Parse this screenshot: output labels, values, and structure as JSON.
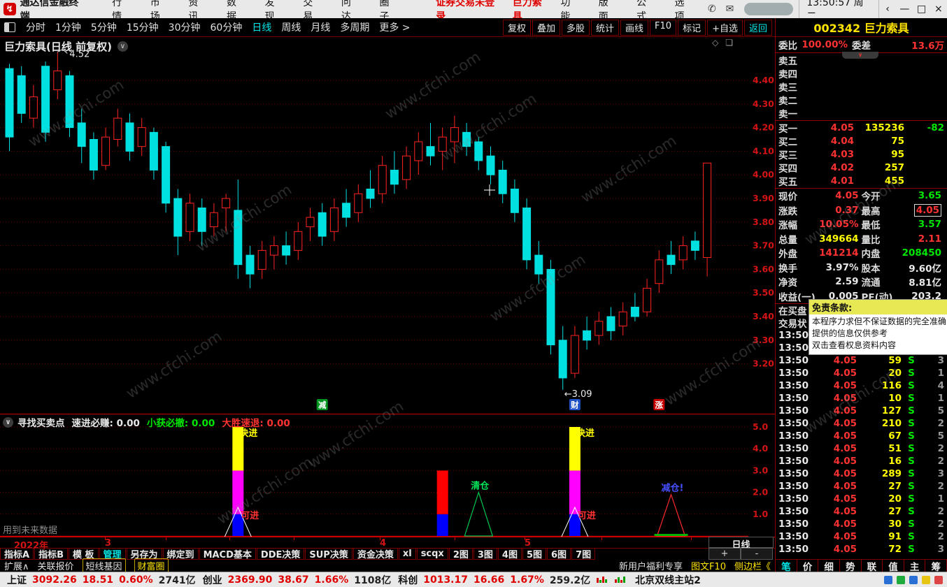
{
  "titlebar": {
    "app_title": "通达信金融终端",
    "menus": [
      "行情",
      "市场",
      "资讯",
      "数据",
      "发现",
      "交易",
      "问达",
      "圈子"
    ],
    "login_warning": "证券交易未登录",
    "warning_stock": "巨力索具",
    "right_menus": [
      "功能",
      "版面",
      "公式",
      "选项"
    ],
    "clock": "13:50:57 周二"
  },
  "toolbar": {
    "periods": [
      "分时",
      "1分钟",
      "5分钟",
      "15分钟",
      "30分钟",
      "60分钟",
      "日线",
      "周线",
      "月线",
      "多周期",
      "更多 >"
    ],
    "active_period": "日线",
    "actions": [
      "复权",
      "叠加",
      "多股",
      "统计",
      "画线",
      "F10",
      "标记",
      "+自选"
    ],
    "back_label": "返回"
  },
  "chart": {
    "title": "巨力索具(日线 前复权)",
    "watermark": "www.cfchi.com"
  },
  "chart_data": [
    {
      "type": "candlestick",
      "title": "巨力索具(日线 前复权)",
      "ylim": [
        3.05,
        4.55
      ],
      "y_ticks": [
        "4.40",
        "4.30",
        "4.20",
        "4.10",
        "4.00",
        "3.90",
        "3.80",
        "3.70",
        "3.60",
        "3.50",
        "3.40",
        "3.30",
        "3.20"
      ],
      "x_axis_labels": [
        {
          "text": "2022年",
          "x": 20
        },
        {
          "text": "3",
          "x": 150
        },
        {
          "text": "4",
          "x": 543
        },
        {
          "text": "5",
          "x": 750
        }
      ],
      "up_color": "#ff2222",
      "down_color": "#00e0e0",
      "annotations": [
        {
          "text": "4.52",
          "index": 4,
          "pos": "high"
        },
        {
          "text": "←3.09",
          "index": 46,
          "pos": "low"
        }
      ],
      "event_badges": [
        {
          "text": "减",
          "color": "#00941e",
          "index": 26
        },
        {
          "text": "财",
          "color": "#1e50c8",
          "index": 47
        },
        {
          "text": "涨",
          "color": "#c80000",
          "index": 54
        }
      ],
      "candles": [
        [
          4.45,
          4.47,
          4.1,
          4.16
        ],
        [
          4.42,
          4.46,
          4.22,
          4.26
        ],
        [
          4.24,
          4.38,
          4.2,
          4.33
        ],
        [
          4.46,
          4.48,
          4.14,
          4.18
        ],
        [
          4.36,
          4.52,
          4.32,
          4.44
        ],
        [
          4.42,
          4.44,
          4.16,
          4.2
        ],
        [
          4.22,
          4.28,
          4.05,
          4.12
        ],
        [
          4.15,
          4.18,
          3.98,
          4.02
        ],
        [
          4.04,
          4.2,
          4.02,
          4.16
        ],
        [
          4.15,
          4.28,
          4.12,
          4.24
        ],
        [
          4.22,
          4.26,
          4.06,
          4.1
        ],
        [
          4.12,
          4.24,
          4.08,
          4.2
        ],
        [
          4.18,
          4.2,
          3.98,
          4.02
        ],
        [
          4.12,
          4.14,
          3.84,
          3.88
        ],
        [
          3.9,
          3.94,
          3.66,
          3.74
        ],
        [
          3.76,
          3.92,
          3.72,
          3.88
        ],
        [
          3.86,
          3.9,
          3.7,
          3.76
        ],
        [
          3.78,
          3.88,
          3.74,
          3.84
        ],
        [
          3.86,
          3.92,
          3.76,
          3.9
        ],
        [
          3.85,
          3.98,
          3.56,
          3.62
        ],
        [
          3.66,
          3.7,
          3.52,
          3.58
        ],
        [
          3.6,
          3.72,
          3.56,
          3.68
        ],
        [
          3.66,
          3.74,
          3.6,
          3.7
        ],
        [
          3.7,
          3.76,
          3.62,
          3.66
        ],
        [
          3.68,
          3.8,
          3.64,
          3.76
        ],
        [
          3.78,
          3.86,
          3.72,
          3.82
        ],
        [
          3.84,
          3.88,
          3.7,
          3.74
        ],
        [
          3.76,
          3.9,
          3.72,
          3.86
        ],
        [
          3.88,
          3.94,
          3.78,
          3.82
        ],
        [
          3.84,
          3.96,
          3.8,
          3.92
        ],
        [
          3.94,
          4.02,
          3.86,
          3.9
        ],
        [
          3.92,
          4.08,
          3.88,
          4.04
        ],
        [
          4.02,
          4.1,
          3.92,
          3.96
        ],
        [
          3.98,
          4.12,
          3.94,
          4.08
        ],
        [
          4.06,
          4.18,
          4.0,
          4.14
        ],
        [
          4.12,
          4.22,
          4.04,
          4.08
        ],
        [
          4.1,
          4.2,
          4.02,
          4.16
        ],
        [
          4.14,
          4.25,
          4.05,
          4.2
        ],
        [
          4.18,
          4.22,
          4.08,
          4.12
        ],
        [
          4.14,
          4.16,
          4.02,
          4.06
        ],
        [
          4.08,
          4.12,
          3.96,
          4.0
        ],
        [
          4.02,
          4.06,
          3.88,
          3.92
        ],
        [
          3.94,
          3.98,
          3.8,
          3.84
        ],
        [
          3.86,
          3.9,
          3.6,
          3.64
        ],
        [
          3.66,
          3.72,
          3.54,
          3.58
        ],
        [
          3.6,
          3.64,
          3.24,
          3.28
        ],
        [
          3.3,
          3.36,
          3.09,
          3.14
        ],
        [
          3.16,
          3.36,
          3.14,
          3.32
        ],
        [
          3.34,
          3.4,
          3.26,
          3.3
        ],
        [
          3.32,
          3.42,
          3.28,
          3.38
        ],
        [
          3.4,
          3.44,
          3.3,
          3.34
        ],
        [
          3.36,
          3.46,
          3.32,
          3.42
        ],
        [
          3.44,
          3.5,
          3.38,
          3.4
        ],
        [
          3.42,
          3.56,
          3.4,
          3.52
        ],
        [
          3.54,
          3.68,
          3.5,
          3.64
        ],
        [
          3.66,
          3.72,
          3.58,
          3.62
        ],
        [
          3.64,
          3.74,
          3.6,
          3.7
        ],
        [
          3.72,
          3.76,
          3.64,
          3.68
        ],
        [
          3.65,
          4.05,
          3.57,
          4.05
        ]
      ]
    },
    {
      "type": "bar",
      "name": "寻找买卖点",
      "stats": [
        {
          "label": "速进必赚:",
          "value": "0.00",
          "color": "#e8e8e8"
        },
        {
          "label": "小获必撤:",
          "value": "0.00",
          "color": "#00e600"
        },
        {
          "label": "大胜速退:",
          "value": "0.00",
          "color": "#ff3232"
        }
      ],
      "note": "用到未来数据",
      "ylim": [
        0,
        5.6
      ],
      "y_ticks": [
        "5.0",
        "4.0",
        "3.0",
        "2.0",
        "1.0"
      ],
      "bars": [
        {
          "index": 19,
          "segments": [
            {
              "color": "#0000ff",
              "value": 1
            },
            {
              "color": "#ff00ff",
              "value": 2
            },
            {
              "color": "#ffff00",
              "value": 2
            }
          ],
          "top_label": {
            "text": "快进",
            "color": "#ffff00"
          },
          "mid_label": {
            "text": "可进",
            "color": "#ff3232"
          },
          "white_triangle": true
        },
        {
          "index": 36,
          "segments": [
            {
              "color": "#0000ff",
              "value": 1
            },
            {
              "color": "#ff0000",
              "value": 2
            }
          ]
        },
        {
          "index": 47,
          "segments": [
            {
              "color": "#0000ff",
              "value": 1
            },
            {
              "color": "#ff00ff",
              "value": 2
            },
            {
              "color": "#ffff00",
              "value": 2
            }
          ],
          "top_label": {
            "text": "快进",
            "color": "#ffff00"
          },
          "mid_label": {
            "text": "可进",
            "color": "#ff3232"
          },
          "white_triangle": true
        }
      ],
      "triangles": [
        {
          "index": 39,
          "height": 2.0,
          "color": "#00c850",
          "label": "清仓",
          "label_color": "#00e65a",
          "green_base": false
        },
        {
          "index": 55,
          "height": 1.9,
          "color": "#ff2828",
          "label": "减仓!",
          "label_color": "#4650ff",
          "green_base": true
        }
      ]
    }
  ],
  "right_panel": {
    "stock_code_name": "002342 巨力索具",
    "weibi_label": "委比",
    "weibi_value": "100.00%",
    "weicha_label": "委差",
    "weicha_value": "13.6万",
    "sell_rows": [
      "卖五",
      "卖四",
      "卖三",
      "卖二",
      "卖一"
    ],
    "buy_rows": [
      {
        "label": "买一",
        "price": "4.05",
        "vol": "135236",
        "extra": "-82"
      },
      {
        "label": "买二",
        "price": "4.04",
        "vol": "75",
        "extra": ""
      },
      {
        "label": "买三",
        "price": "4.03",
        "vol": "95",
        "extra": ""
      },
      {
        "label": "买四",
        "price": "4.02",
        "vol": "257",
        "extra": ""
      },
      {
        "label": "买五",
        "price": "4.01",
        "vol": "455",
        "extra": ""
      }
    ],
    "info_rows": [
      [
        {
          "label": "现价",
          "value": "4.05",
          "color": "red"
        },
        {
          "label": "今开",
          "value": "3.65",
          "color": "green"
        }
      ],
      [
        {
          "label": "涨跌",
          "value": "0.37",
          "color": "red"
        },
        {
          "label": "最高",
          "value": "4.05",
          "color": "red",
          "boxed": true
        }
      ],
      [
        {
          "label": "涨幅",
          "value": "10.05%",
          "color": "red"
        },
        {
          "label": "最低",
          "value": "3.57",
          "color": "green"
        }
      ],
      [
        {
          "label": "总量",
          "value": "349664",
          "color": "yellow"
        },
        {
          "label": "量比",
          "value": "2.11",
          "color": "red"
        }
      ],
      [
        {
          "label": "外盘",
          "value": "141214",
          "color": "red"
        },
        {
          "label": "内盘",
          "value": "208450",
          "color": "green"
        }
      ],
      [
        {
          "label": "换手",
          "value": "3.97%",
          "color": "white"
        },
        {
          "label": "股本",
          "value": "9.60亿",
          "color": "white"
        }
      ],
      [
        {
          "label": "净资",
          "value": "2.59",
          "color": "white"
        },
        {
          "label": "流通",
          "value": "8.81亿",
          "color": "white"
        }
      ],
      [
        {
          "label": "收益(一)",
          "value": "0.005",
          "color": "white"
        },
        {
          "label": "PE(动)",
          "value": "203.2",
          "color": "white"
        }
      ]
    ],
    "partial_rows": [
      "在买盘",
      "交易状"
    ],
    "tooltip": {
      "title": "免责条款:",
      "lines": [
        "本程序力求但不保证数据的完全准确,",
        "提供的信息仅供参考",
        "双击查看权息资料内容"
      ]
    },
    "tape_partial": [
      "13:50",
      "13:50"
    ],
    "tape": [
      {
        "time": "13:50",
        "price": "4.05",
        "vol": "59",
        "dir": "S",
        "n": "3"
      },
      {
        "time": "13:50",
        "price": "4.05",
        "vol": "20",
        "dir": "S",
        "n": "1"
      },
      {
        "time": "13:50",
        "price": "4.05",
        "vol": "116",
        "dir": "S",
        "n": "4"
      },
      {
        "time": "13:50",
        "price": "4.05",
        "vol": "10",
        "dir": "S",
        "n": "1"
      },
      {
        "time": "13:50",
        "price": "4.05",
        "vol": "127",
        "dir": "S",
        "n": "5"
      },
      {
        "time": "13:50",
        "price": "4.05",
        "vol": "210",
        "dir": "S",
        "n": "2"
      },
      {
        "time": "13:50",
        "price": "4.05",
        "vol": "67",
        "dir": "S",
        "n": "5"
      },
      {
        "time": "13:50",
        "price": "4.05",
        "vol": "51",
        "dir": "S",
        "n": "2"
      },
      {
        "time": "13:50",
        "price": "4.05",
        "vol": "16",
        "dir": "S",
        "n": "2"
      },
      {
        "time": "13:50",
        "price": "4.05",
        "vol": "289",
        "dir": "S",
        "n": "3"
      },
      {
        "time": "13:50",
        "price": "4.05",
        "vol": "27",
        "dir": "S",
        "n": "2"
      },
      {
        "time": "13:50",
        "price": "4.05",
        "vol": "20",
        "dir": "S",
        "n": "1"
      },
      {
        "time": "13:50",
        "price": "4.05",
        "vol": "27",
        "dir": "S",
        "n": "2"
      },
      {
        "time": "13:50",
        "price": "4.05",
        "vol": "30",
        "dir": "S",
        "n": "2"
      },
      {
        "time": "13:50",
        "price": "4.05",
        "vol": "91",
        "dir": "S",
        "n": "2"
      },
      {
        "time": "13:50",
        "price": "4.05",
        "vol": "72",
        "dir": "S",
        "n": "3"
      }
    ],
    "tape_tabs": [
      "笔",
      "价",
      "细",
      "势",
      "联",
      "值",
      "主",
      "筹"
    ],
    "active_tape_tab": "笔"
  },
  "bottom": {
    "tabs": [
      "指标A",
      "指标B",
      "模 板",
      "管理",
      "另存为",
      "绑定到",
      "MACD基本",
      "DDE决策",
      "SUP决策",
      "资金决策",
      "xl",
      "scqx",
      "2图",
      "3图",
      "4图",
      "5图",
      "6图",
      "7图"
    ],
    "active_tab": "管理",
    "period_label": "日线",
    "zoom_in": "+",
    "zoom_out": "-",
    "row2_left": [
      "扩展∧",
      "关联报价",
      "短线基因",
      "财富圈"
    ],
    "row2_right": [
      {
        "text": "新用户福利专享",
        "color": "white"
      },
      {
        "text": "图文F10",
        "color": "yellow"
      },
      {
        "text": "侧边栏《",
        "color": "yellow"
      }
    ]
  },
  "status_bar": {
    "indices": [
      {
        "name": "上证",
        "value": "3092.26",
        "chg": "18.51",
        "pct": "0.60%",
        "amt": "2741亿"
      },
      {
        "name": "创业",
        "value": "2369.90",
        "chg": "38.67",
        "pct": "1.66%",
        "amt": "1108亿"
      },
      {
        "name": "科创",
        "value": "1013.17",
        "chg": "16.66",
        "pct": "1.67%",
        "amt": "259.2亿"
      }
    ],
    "server": "北京双线主站2"
  }
}
